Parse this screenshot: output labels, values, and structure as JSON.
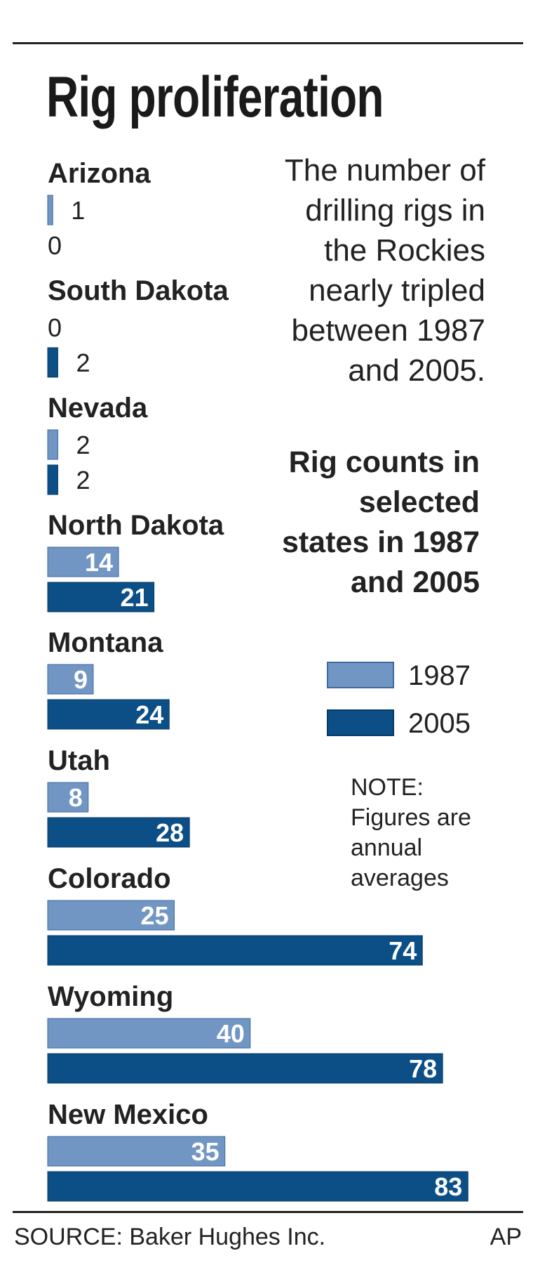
{
  "title": "Rig proliferation",
  "intro": "The number of drilling rigs in the Rockies nearly tripled between 1987 and 2005.",
  "legend": {
    "title": "Rig counts in selected states in 1987 and 2005",
    "items": [
      {
        "label": "1987",
        "color": "#7196c4"
      },
      {
        "label": "2005",
        "color": "#0b4f86"
      }
    ]
  },
  "note": "NOTE: Figures are annual averages",
  "source": "SOURCE: Baker Hughes Inc.",
  "credit": "AP",
  "chart_data": {
    "type": "bar",
    "orientation": "horizontal",
    "categories": [
      "Arizona",
      "South Dakota",
      "Nevada",
      "North Dakota",
      "Montana",
      "Utah",
      "Colorado",
      "Wyoming",
      "New Mexico"
    ],
    "series": [
      {
        "name": "1987",
        "color": "#7196c4",
        "values": [
          1,
          0,
          2,
          14,
          9,
          8,
          25,
          40,
          35
        ]
      },
      {
        "name": "2005",
        "color": "#0b4f86",
        "values": [
          0,
          2,
          2,
          21,
          24,
          28,
          74,
          78,
          83
        ]
      }
    ],
    "xlim": [
      0,
      83
    ],
    "grid": false,
    "legend_position": "right"
  }
}
